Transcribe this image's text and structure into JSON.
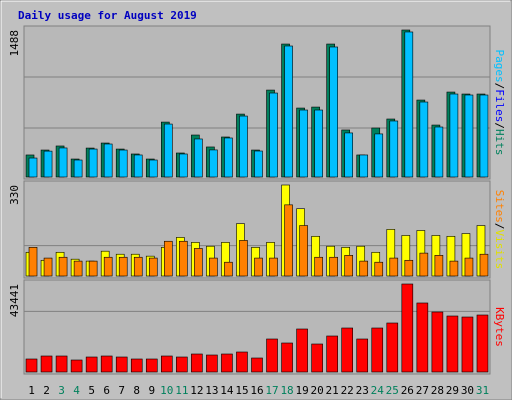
{
  "chart_data": {
    "type": "bar",
    "title": "Daily usage for August 2019",
    "categories": [
      "1",
      "2",
      "3",
      "4",
      "5",
      "6",
      "7",
      "8",
      "9",
      "10",
      "11",
      "12",
      "13",
      "14",
      "15",
      "16",
      "17",
      "18",
      "19",
      "20",
      "21",
      "22",
      "23",
      "24",
      "25",
      "26",
      "27",
      "28",
      "29",
      "30",
      "31"
    ],
    "category_colors": [
      "#000000",
      "#000000",
      "#00805c",
      "#00805c",
      "#000000",
      "#000000",
      "#000000",
      "#000000",
      "#000000",
      "#00805c",
      "#00805c",
      "#000000",
      "#000000",
      "#000000",
      "#000000",
      "#000000",
      "#00805c",
      "#00805c",
      "#000000",
      "#000000",
      "#000000",
      "#000000",
      "#000000",
      "#00805c",
      "#00805c",
      "#000000",
      "#000000",
      "#000000",
      "#000000",
      "#000000",
      "#00805c"
    ],
    "panels": [
      {
        "ylim": [
          0,
          1488
        ],
        "yticks": [
          1488
        ],
        "side_label": [
          {
            "text": "Pages",
            "color": "#00c0ff"
          },
          {
            "text": "/",
            "color": "#000000"
          },
          {
            "text": "Files",
            "color": "#0000ff"
          },
          {
            "text": "/",
            "color": "#000000"
          },
          {
            "text": "Hits",
            "color": "#00805c"
          }
        ],
        "series": [
          {
            "name": "Hits",
            "color": "#00805c",
            "values": [
              223,
              273,
              314,
              182,
              293,
              344,
              283,
              233,
              182,
              556,
              243,
              425,
              304,
              405,
              637,
              273,
              880,
              1346,
              698,
              708,
              1346,
              476,
              223,
              496,
              587,
              1488,
              779,
              526,
              860,
              840,
              840
            ]
          },
          {
            "name": "Pages",
            "color": "#00c0ff",
            "values": [
              192,
              262,
              294,
              172,
              283,
              334,
              273,
              223,
              172,
              536,
              233,
              385,
              274,
              395,
              617,
              263,
              850,
              1326,
              678,
              678,
              1316,
              446,
              223,
              436,
              567,
              1468,
              759,
              506,
              840,
              830,
              830
            ]
          }
        ]
      },
      {
        "ylim": [
          0,
          330
        ],
        "yticks": [
          330
        ],
        "side_label": [
          {
            "text": "Sites",
            "color": "#ff8000"
          },
          {
            "text": "/",
            "color": "#000000"
          },
          {
            "text": "Visits",
            "color": "#e0e000"
          }
        ],
        "series": [
          {
            "name": "Visits",
            "color": "#ffff00",
            "values": [
              86,
              57,
              86,
              61,
              54,
              90,
              79,
              79,
              72,
              104,
              140,
              122,
              108,
              122,
              190,
              104,
              122,
              330,
              244,
              144,
              108,
              104,
              108,
              86,
              169,
              147,
              165,
              147,
              144,
              154,
              183
            ]
          },
          {
            "name": "Sites",
            "color": "#ff8000",
            "values": [
              104,
              65,
              68,
              54,
              54,
              68,
              68,
              68,
              65,
              126,
              126,
              100,
              65,
              50,
              129,
              65,
              65,
              258,
              183,
              68,
              68,
              75,
              54,
              50,
              65,
              57,
              83,
              75,
              54,
              65,
              79
            ]
          }
        ]
      },
      {
        "ylim": [
          0,
          43441
        ],
        "yticks": [
          43441
        ],
        "side_label": [
          {
            "text": "KBytes",
            "color": "#ff0000"
          }
        ],
        "series": [
          {
            "name": "KBytes",
            "color": "#ff0000",
            "values": [
              6417,
              7897,
              7897,
              5923,
              7404,
              7897,
              7404,
              6417,
              6417,
              7897,
              7404,
              8885,
              8391,
              8885,
              9872,
              6910,
              16289,
              14314,
              21225,
              13820,
              17769,
              21718,
              16289,
              21718,
              24186,
              43441,
              34065,
              29616,
              27642,
              27148,
              28136
            ]
          }
        ]
      }
    ]
  }
}
